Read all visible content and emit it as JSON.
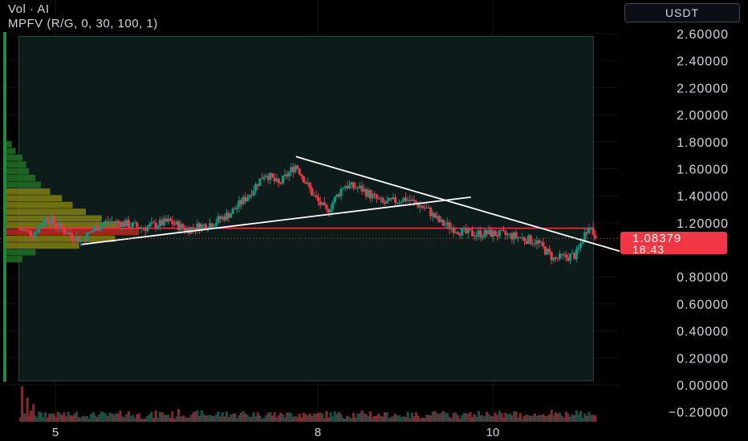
{
  "legend": {
    "volume_label": "Vol · AI",
    "indicator_label": "MPFV (R/G, 0, 30, 100, 1)"
  },
  "toolbar": {
    "currency": "USDT"
  },
  "last_price": {
    "price": "1.08379",
    "countdown": "18:43"
  },
  "colors": {
    "background": "#000000",
    "up": "#089981",
    "down": "#f23645",
    "trendline": "#ffffff",
    "value_area": "#0d1b1b",
    "volume_up": "#1b4d44",
    "volume_down": "#7d2a31"
  },
  "chart_data": {
    "type": "candlestick",
    "symbol_quote": "USDT",
    "ylim": [
      -0.2,
      2.7
    ],
    "y_ticks": [
      2.6,
      2.4,
      2.2,
      2.0,
      1.8,
      1.6,
      1.4,
      1.2,
      1.0,
      0.8,
      0.6,
      0.4,
      0.2,
      0.0,
      -0.2
    ],
    "y_tick_labels": [
      "2.60000",
      "2.40000",
      "2.20000",
      "2.00000",
      "1.80000",
      "1.60000",
      "1.40000",
      "1.20000",
      "",
      "0.80000",
      "0.60000",
      "0.40000",
      "0.20000",
      "0.00000",
      "−0.20000"
    ],
    "x_ticks": [
      {
        "label": "5",
        "day": 5
      },
      {
        "label": "8",
        "day": 8
      },
      {
        "label": "10",
        "day": 10
      }
    ],
    "xlim": [
      4.55,
      11.4
    ],
    "value_area": {
      "x_start": 4.58,
      "x_end": 11.15,
      "price_low": 0.03,
      "price_high": 2.58
    },
    "horizontal_line": {
      "price": 1.16,
      "x_start": 4.58,
      "x_end": 11.15
    },
    "trendlines": [
      {
        "x1": 5.3,
        "y1": 1.04,
        "x2": 9.75,
        "y2": 1.39
      },
      {
        "x1": 7.75,
        "y1": 1.69,
        "x2": 11.45,
        "y2": 0.99
      }
    ],
    "last_price": 1.08379,
    "anchors": [
      {
        "day": 4.6,
        "close": 1.15
      },
      {
        "day": 4.75,
        "close": 1.12
      },
      {
        "day": 4.9,
        "close": 1.24
      },
      {
        "day": 5.0,
        "close": 1.19
      },
      {
        "day": 5.15,
        "close": 1.12
      },
      {
        "day": 5.3,
        "close": 1.07
      },
      {
        "day": 5.45,
        "close": 1.16
      },
      {
        "day": 5.6,
        "close": 1.21
      },
      {
        "day": 5.75,
        "close": 1.2
      },
      {
        "day": 6.0,
        "close": 1.16
      },
      {
        "day": 6.3,
        "close": 1.21
      },
      {
        "day": 6.5,
        "close": 1.15
      },
      {
        "day": 6.8,
        "close": 1.2
      },
      {
        "day": 7.0,
        "close": 1.27
      },
      {
        "day": 7.2,
        "close": 1.4
      },
      {
        "day": 7.4,
        "close": 1.57
      },
      {
        "day": 7.55,
        "close": 1.48
      },
      {
        "day": 7.75,
        "close": 1.63
      },
      {
        "day": 7.95,
        "close": 1.4
      },
      {
        "day": 8.1,
        "close": 1.28
      },
      {
        "day": 8.3,
        "close": 1.48
      },
      {
        "day": 8.5,
        "close": 1.45
      },
      {
        "day": 8.75,
        "close": 1.34
      },
      {
        "day": 9.0,
        "close": 1.38
      },
      {
        "day": 9.25,
        "close": 1.3
      },
      {
        "day": 9.4,
        "close": 1.2
      },
      {
        "day": 9.7,
        "close": 1.12
      },
      {
        "day": 10.0,
        "close": 1.12
      },
      {
        "day": 10.25,
        "close": 1.1
      },
      {
        "day": 10.5,
        "close": 1.06
      },
      {
        "day": 10.7,
        "close": 0.93
      },
      {
        "day": 10.95,
        "close": 0.96
      },
      {
        "day": 11.1,
        "close": 1.19
      },
      {
        "day": 11.18,
        "close": 1.08
      }
    ],
    "volume_profile_bins": [
      {
        "price": 1.78,
        "volume": 4
      },
      {
        "price": 1.73,
        "volume": 7
      },
      {
        "price": 1.68,
        "volume": 12
      },
      {
        "price": 1.63,
        "volume": 15
      },
      {
        "price": 1.58,
        "volume": 17
      },
      {
        "price": 1.53,
        "volume": 22
      },
      {
        "price": 1.48,
        "volume": 26
      },
      {
        "price": 1.43,
        "volume": 33
      },
      {
        "price": 1.38,
        "volume": 42
      },
      {
        "price": 1.33,
        "volume": 50
      },
      {
        "price": 1.28,
        "volume": 60
      },
      {
        "price": 1.23,
        "volume": 72
      },
      {
        "price": 1.18,
        "volume": 85
      },
      {
        "price": 1.13,
        "volume": 100
      },
      {
        "price": 1.08,
        "volume": 82
      },
      {
        "price": 1.03,
        "volume": 55
      },
      {
        "price": 0.98,
        "volume": 22
      },
      {
        "price": 0.93,
        "volume": 12
      }
    ]
  }
}
